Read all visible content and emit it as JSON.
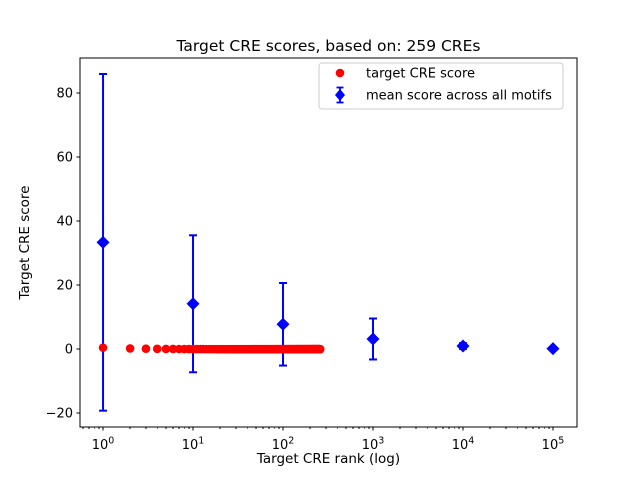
{
  "chart_data": {
    "type": "scatter",
    "title": "Target CRE scores, based on: 259 CREs",
    "xlabel": "Target CRE rank (log)",
    "ylabel": "Target CRE score",
    "x_scale": "log",
    "grid": false,
    "xlim_log10": [
      -0.256,
      5.267
    ],
    "ylim": [
      -24.3,
      91.0
    ],
    "x_ticks": {
      "base": "10",
      "exponents": [
        0,
        1,
        2,
        3,
        4,
        5
      ]
    },
    "y_ticks": [
      {
        "value": -20,
        "label": "−20"
      },
      {
        "value": 0,
        "label": "0"
      },
      {
        "value": 20,
        "label": "20"
      },
      {
        "value": 40,
        "label": "40"
      },
      {
        "value": 60,
        "label": "60"
      },
      {
        "value": 80,
        "label": "80"
      }
    ],
    "colors": {
      "red": "#ff0000",
      "blue": "#0000ff",
      "legend_border": "#cccccc"
    },
    "legend": {
      "position": "upper right",
      "entries": [
        {
          "label": "target CRE score",
          "marker": "circle",
          "color": "#ff0000"
        },
        {
          "label": "mean score across all motifs",
          "marker": "diamond-errorbar",
          "color": "#0000ff"
        }
      ]
    },
    "series": [
      {
        "name": "target CRE score",
        "type": "scatter",
        "marker": "circle",
        "color": "#ff0000",
        "rank_start": 1,
        "rank_end": 259,
        "first_value": 0.5,
        "values_note": "scores hug 0: ≈0.5 at rank 1, decaying toward 0 by rank 259"
      },
      {
        "name": "mean score across all motifs",
        "type": "scatter-errorbar",
        "marker": "diamond",
        "color": "#0000ff",
        "x": [
          1,
          10,
          100,
          1000,
          10000,
          100000
        ],
        "y": [
          33.4,
          14.2,
          7.8,
          3.2,
          1.0,
          0.2
        ],
        "yerr": [
          52.6,
          21.4,
          12.9,
          6.4,
          0.9,
          0.4
        ]
      }
    ]
  }
}
